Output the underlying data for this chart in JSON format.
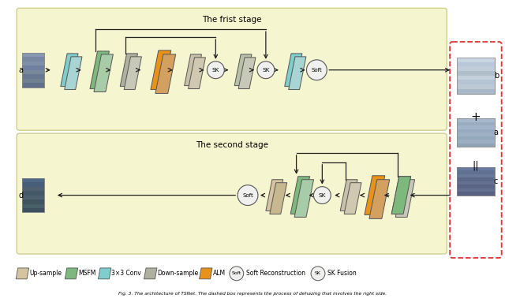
{
  "title1": "The frist stage",
  "title2": "The second stage",
  "caption": "Fig. 3. The architecture of TSNet. The dashed box represents the process of dehazing that involves the right side.",
  "bg_stage": "#f5f5d0",
  "border_stage": "#d0d090",
  "cyan_color": "#7ecece",
  "green_color": "#7db87d",
  "tan_color": "#d4c4a0",
  "orange_color": "#e8921a",
  "gray_color": "#b0b0a0",
  "back_color": "#c8c8b8",
  "dashed_box_color": "#dd3333",
  "arrow_color": "#222222",
  "circle_bg": "#f0f0ee",
  "legend_items": [
    {
      "label": "Up-sample",
      "color": "#d4c4a0",
      "type": "para"
    },
    {
      "label": "MSFM",
      "color": "#7db87d",
      "type": "para"
    },
    {
      "label": "3×3 Conv",
      "color": "#7ecece",
      "type": "para"
    },
    {
      "label": "Down-sample",
      "color": "#b0b0a0",
      "type": "para"
    },
    {
      "label": "ALM",
      "color": "#e8921a",
      "type": "para"
    },
    {
      "label": "Soft Reconstruction",
      "symbol": "Soft",
      "type": "circle"
    },
    {
      "label": "SK Fusion",
      "symbol": "SK",
      "type": "circle"
    }
  ]
}
